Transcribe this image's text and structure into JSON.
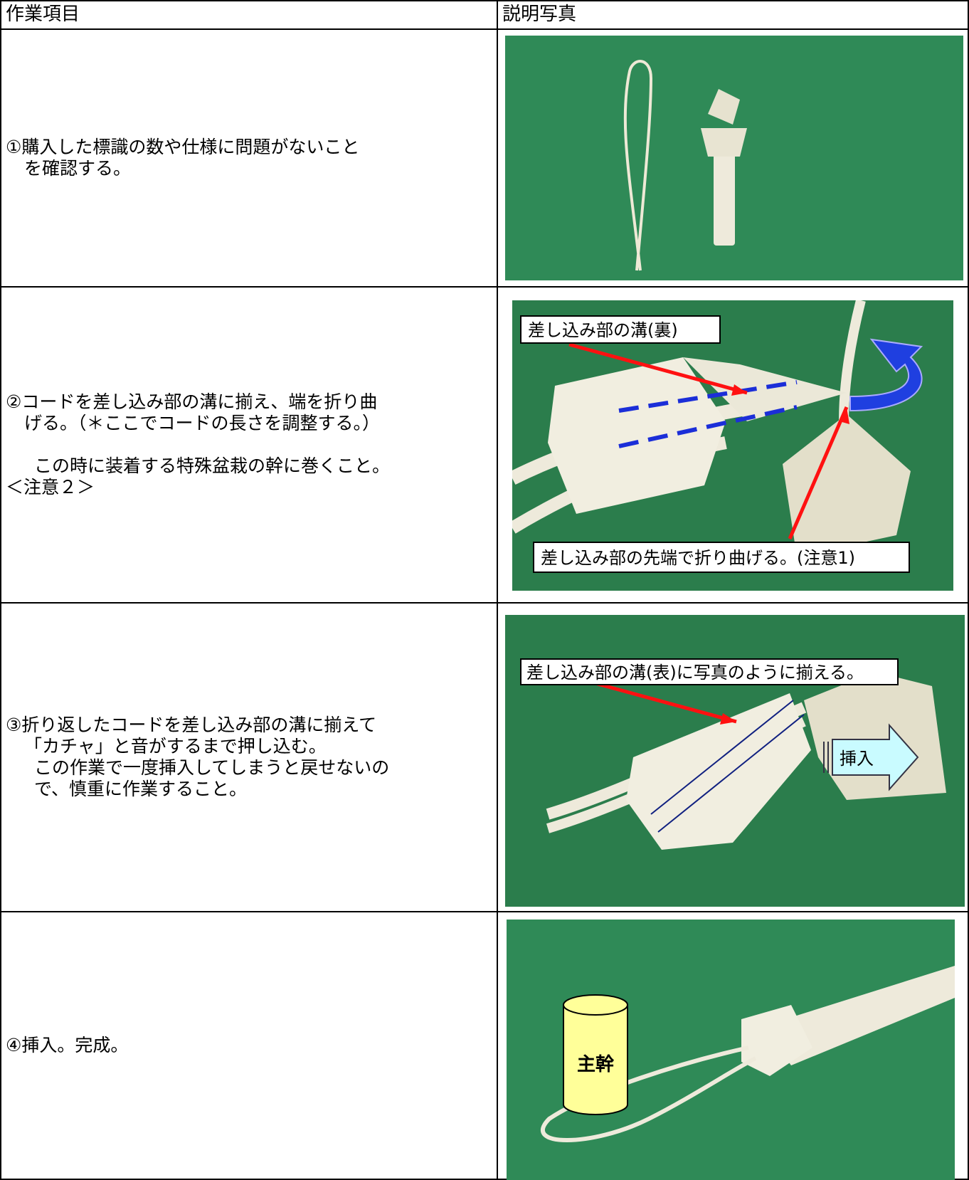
{
  "table": {
    "headers": [
      "作業項目",
      "説明写真"
    ],
    "rows": [
      {
        "text": [
          "①購入した標識の数や仕様に問題がないこと",
          "を確認する。"
        ]
      },
      {
        "text": [
          "②コードを差し込み部の溝に揃え、端を折り曲",
          "げる。（＊ここでコードの長さを調整する。）",
          "この時に装着する特殊盆栽の幹に巻くこと。",
          "＜注意２＞"
        ],
        "photo_labels": [
          "差し込み部の溝(裏)",
          "差し込み部の先端で折り曲げる。(注意1)"
        ]
      },
      {
        "text": [
          "③折り返したコードを差し込み部の溝に揃えて",
          "「カチャ」と音がするまで押し込む。",
          "この作業で一度挿入してしまうと戻せないの",
          "で、慎重に作業すること。"
        ],
        "photo_labels": [
          "差し込み部の溝(表)に写真のように揃える。",
          "挿入"
        ]
      },
      {
        "text": [
          "④挿入。完成。"
        ],
        "photo_labels": [
          "主幹"
        ]
      }
    ]
  }
}
